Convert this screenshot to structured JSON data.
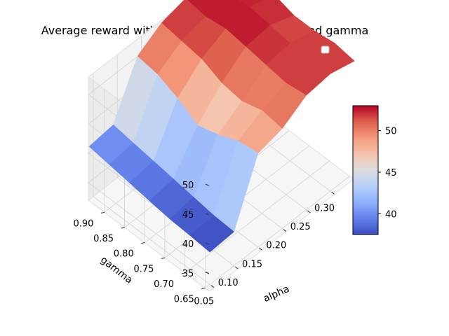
{
  "chart_data": {
    "type": "surface",
    "title": "Average reward with different values of alpha and gamma",
    "xlabel": "alpha",
    "ylabel": "gamma",
    "zlabel": "",
    "x": [
      0.05,
      0.1,
      0.15,
      0.2,
      0.25,
      0.3,
      0.35
    ],
    "y": [
      0.65,
      0.7,
      0.75,
      0.8,
      0.85,
      0.9,
      0.95
    ],
    "xlim": [
      0.04,
      0.34
    ],
    "ylim": [
      0.64,
      0.94
    ],
    "zlim": [
      32,
      53
    ],
    "xticks": [
      "0.05",
      "0.10",
      "0.15",
      "0.20",
      "0.25",
      "0.30"
    ],
    "yticks": [
      "0.65",
      "0.70",
      "0.75",
      "0.80",
      "0.85",
      "0.90"
    ],
    "zticks": [
      "35",
      "40",
      "45",
      "50"
    ],
    "z": [
      [
        37.5,
        37.8,
        48.0,
        49.0,
        51.5,
        52.0,
        51.0
      ],
      [
        37.8,
        38.0,
        47.5,
        49.5,
        51.0,
        52.5,
        51.5
      ],
      [
        38.0,
        38.5,
        46.0,
        48.5,
        51.5,
        52.0,
        51.0
      ],
      [
        38.5,
        39.0,
        45.0,
        49.0,
        52.0,
        52.5,
        51.0
      ],
      [
        39.0,
        39.5,
        47.0,
        50.5,
        52.5,
        53.0,
        52.0
      ],
      [
        39.5,
        40.0,
        48.5,
        51.0,
        52.0,
        52.5,
        52.0
      ],
      [
        40.0,
        40.5,
        49.0,
        51.5,
        52.5,
        53.0,
        52.0
      ]
    ],
    "colormap": "coolwarm",
    "colorbar": {
      "min": 37.5,
      "max": 53,
      "ticks": [
        "40",
        "45",
        "50"
      ]
    },
    "legend": {
      "placement": "top-right",
      "entries": []
    },
    "grid": true
  }
}
